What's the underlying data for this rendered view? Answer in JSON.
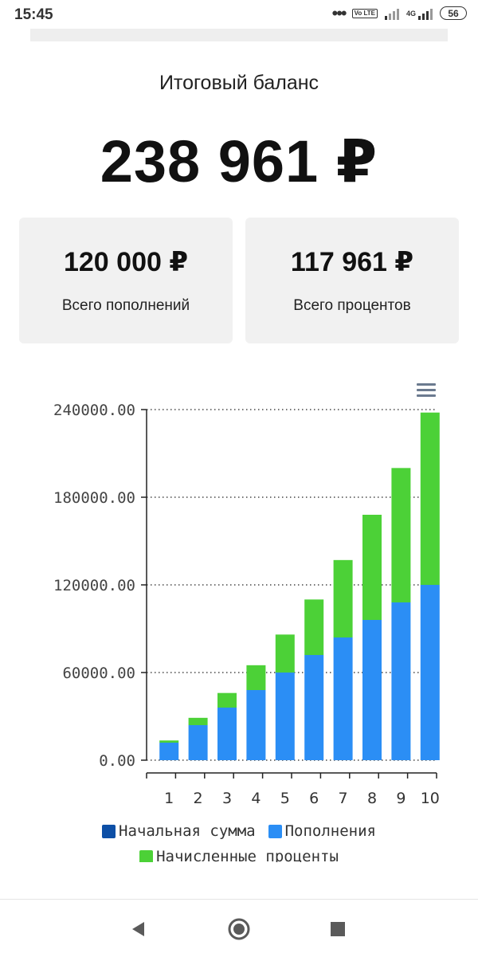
{
  "status_bar": {
    "time": "15:45",
    "dots": "•••",
    "volte": "Vo LTE",
    "network": "4G",
    "battery": "56"
  },
  "balance": {
    "label": "Итоговый баланс",
    "value": "238 961 ₽"
  },
  "cards": [
    {
      "amount": "120 000 ₽",
      "caption": "Всего пополнений"
    },
    {
      "amount": "117 961 ₽",
      "caption": "Всего процентов"
    }
  ],
  "chart_data": {
    "type": "bar",
    "stacked": true,
    "categories": [
      "1",
      "2",
      "3",
      "4",
      "5",
      "6",
      "7",
      "8",
      "9",
      "10"
    ],
    "series": [
      {
        "name": "Начальная сумма",
        "color": "#0d4fa6",
        "values": [
          0,
          0,
          0,
          0,
          0,
          0,
          0,
          0,
          0,
          0
        ]
      },
      {
        "name": "Пополнения",
        "color": "#2b8ef5",
        "values": [
          12000,
          24000,
          36000,
          48000,
          60000,
          72000,
          84000,
          96000,
          108000,
          120000
        ]
      },
      {
        "name": "Начисленные проценты",
        "color": "#4cd137",
        "values": [
          1500,
          5000,
          10000,
          17000,
          26000,
          38000,
          53000,
          72000,
          92000,
          117961
        ]
      }
    ],
    "y_ticks": [
      "0.00",
      "60000.00",
      "120000.00",
      "180000.00",
      "240000.00"
    ],
    "ylim": [
      0,
      240000
    ],
    "grid": true,
    "legend_position": "bottom"
  },
  "nav": {
    "back_icon": "back-triangle",
    "home_icon": "home-circle",
    "recents_icon": "recents-square"
  }
}
